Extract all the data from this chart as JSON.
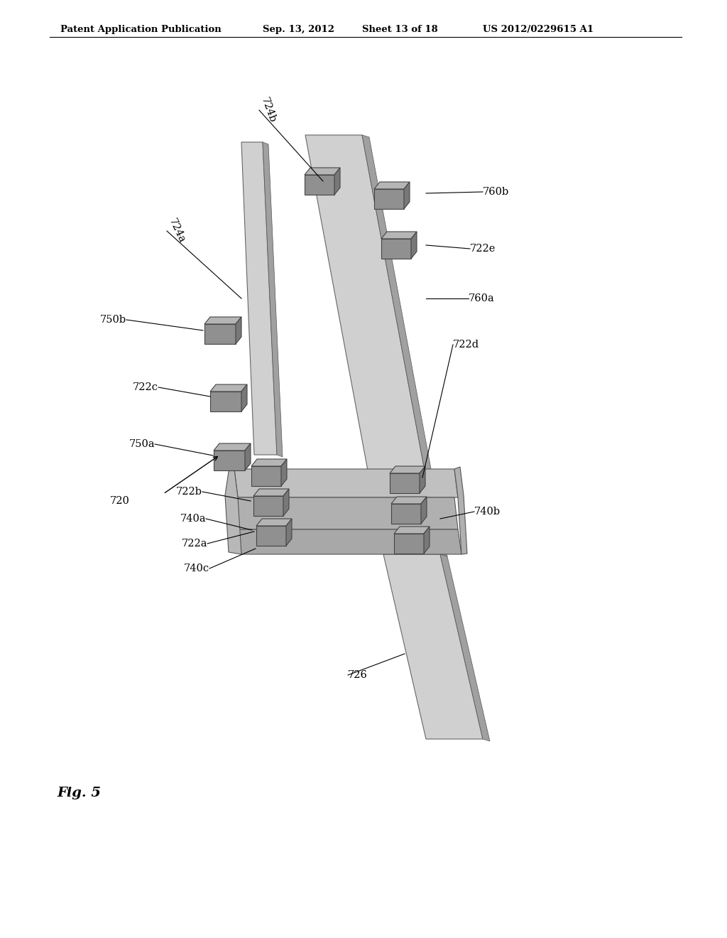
{
  "background_color": "#ffffff",
  "header_text": "Patent Application Publication",
  "header_date": "Sep. 13, 2012",
  "header_sheet": "Sheet 13 of 18",
  "header_patent": "US 2012/0229615 A1",
  "figure_label": "Fig. 5",
  "board_light": "#d0d0d0",
  "board_mid": "#b8b8b8",
  "board_dark": "#a0a0a0",
  "connector_face": "#909090",
  "connector_top": "#b0b0b0",
  "connector_side": "#707070"
}
